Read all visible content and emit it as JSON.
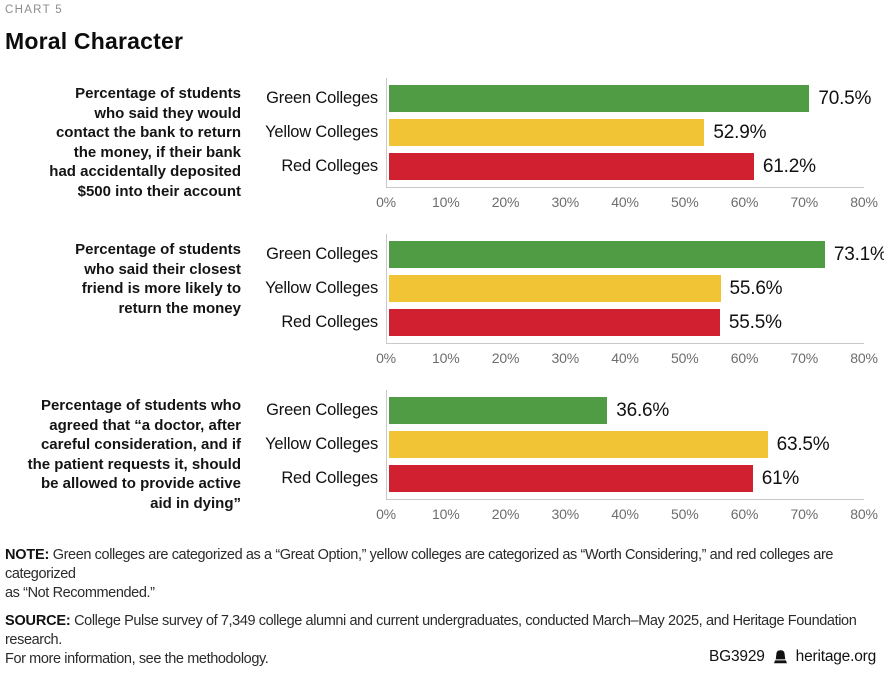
{
  "page": {
    "chart_label": "CHART 5",
    "title": "Moral Character",
    "footer_id": "BG3929",
    "footer_site": "heritage.org"
  },
  "notes": {
    "note_prefix": "NOTE:",
    "note_text": "Green colleges are categorized as a “Great Option,” yellow colleges are categorized as “Worth Considering,” and red colleges are categorized\nas “Not Recommended.”",
    "source_prefix": "SOURCE:",
    "source_text": "College Pulse survey of 7,349 college alumni and current undergraduates, conducted March–May 2025, and Heritage Foundation research.\nFor more information, see the methodology."
  },
  "chart_data": {
    "type": "bar",
    "orientation": "horizontal",
    "title": "Moral Character",
    "categories": [
      "Green Colleges",
      "Yellow Colleges",
      "Red Colleges"
    ],
    "colors": {
      "green": "#4f9c45",
      "yellow": "#f0c435",
      "red": "#d1202f"
    },
    "xlim": [
      0,
      80
    ],
    "x_ticks": [
      "0%",
      "10%",
      "20%",
      "30%",
      "40%",
      "50%",
      "60%",
      "70%",
      "80%"
    ],
    "grid": false,
    "legend": "none",
    "groups": [
      {
        "question": "Percentage of students\nwho said they would\ncontact the bank to return\nthe money, if their bank\nhad accidentally deposited\n$500 into their account",
        "values": [
          70.5,
          52.9,
          61.2
        ],
        "value_labels": [
          "70.5%",
          "52.9%",
          "61.2%"
        ]
      },
      {
        "question": "Percentage of students\nwho said their closest\nfriend is more likely to\nreturn the money",
        "values": [
          73.1,
          55.6,
          55.5
        ],
        "value_labels": [
          "73.1%",
          "55.6%",
          "55.5%"
        ]
      },
      {
        "question": "Percentage of students who\nagreed that “a doctor, after\ncareful consideration, and if\nthe patient requests it, should\nbe allowed to provide active\naid in dying”",
        "values": [
          36.6,
          63.5,
          61.0
        ],
        "value_labels": [
          "36.6%",
          "63.5%",
          "61%"
        ]
      }
    ]
  }
}
